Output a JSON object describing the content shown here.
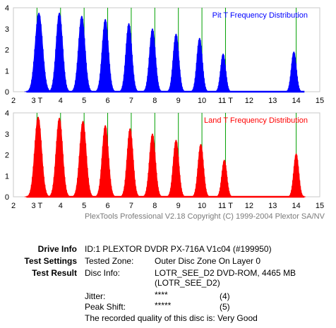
{
  "charts": [
    {
      "id": "pit",
      "title": "Pit T Frequency Distribution",
      "color": "#0000ff",
      "title_color": "#0000ff",
      "xlim": [
        2,
        15
      ],
      "ylim": [
        0,
        4
      ],
      "xticks": [
        "2",
        "3 T",
        "4",
        "5",
        "6",
        "7",
        "8",
        "9",
        "10",
        "11 T",
        "12",
        "13",
        "14",
        "15"
      ],
      "yticks": [
        "0",
        "1",
        "2",
        "3",
        "4"
      ]
    },
    {
      "id": "land",
      "title": "Land T Frequency Distribution",
      "color": "#ff0000",
      "title_color": "#ff0000",
      "xlim": [
        2,
        15
      ],
      "ylim": [
        0,
        4
      ],
      "xticks": [
        "2",
        "3 T",
        "4",
        "5",
        "6",
        "7",
        "8",
        "9",
        "10",
        "11 T",
        "12",
        "13",
        "14",
        "15"
      ],
      "yticks": [
        "0",
        "1",
        "2",
        "3",
        "4"
      ]
    }
  ],
  "chart_data": [
    {
      "type": "area",
      "title": "Pit T Frequency Distribution",
      "xlim": [
        2,
        15
      ],
      "ylim": [
        0,
        4
      ],
      "reference_lines_x": [
        3,
        4,
        5,
        6,
        7,
        8,
        9,
        10,
        11,
        14
      ],
      "peaks": [
        {
          "center": 3.08,
          "height": 3.75,
          "width": 0.48
        },
        {
          "center": 3.95,
          "height": 3.75,
          "width": 0.42
        },
        {
          "center": 4.9,
          "height": 3.6,
          "width": 0.42
        },
        {
          "center": 5.9,
          "height": 3.45,
          "width": 0.4
        },
        {
          "center": 6.9,
          "height": 3.25,
          "width": 0.38
        },
        {
          "center": 7.9,
          "height": 3.0,
          "width": 0.38
        },
        {
          "center": 8.9,
          "height": 2.75,
          "width": 0.36
        },
        {
          "center": 9.9,
          "height": 2.55,
          "width": 0.35
        },
        {
          "center": 10.9,
          "height": 1.8,
          "width": 0.32
        },
        {
          "center": 13.9,
          "height": 1.9,
          "width": 0.32
        }
      ]
    },
    {
      "type": "area",
      "title": "Land T Frequency Distribution",
      "xlim": [
        2,
        15
      ],
      "ylim": [
        0,
        4
      ],
      "reference_lines_x": [
        3,
        4,
        5,
        6,
        7,
        8,
        9,
        10,
        11,
        14
      ],
      "peaks": [
        {
          "center": 3.05,
          "height": 3.8,
          "width": 0.45
        },
        {
          "center": 3.95,
          "height": 3.75,
          "width": 0.42
        },
        {
          "center": 4.95,
          "height": 3.6,
          "width": 0.42
        },
        {
          "center": 5.9,
          "height": 3.4,
          "width": 0.4
        },
        {
          "center": 6.95,
          "height": 3.25,
          "width": 0.38
        },
        {
          "center": 7.9,
          "height": 3.0,
          "width": 0.38
        },
        {
          "center": 8.9,
          "height": 2.7,
          "width": 0.36
        },
        {
          "center": 9.95,
          "height": 2.5,
          "width": 0.35
        },
        {
          "center": 10.95,
          "height": 1.75,
          "width": 0.32
        },
        {
          "center": 14.0,
          "height": 2.05,
          "width": 0.32
        }
      ]
    }
  ],
  "copyright": "PlexTools Professional V2.18 Copyright (C) 1999-2004 Plextor SA/NV",
  "info": {
    "drive_info_label": "Drive Info",
    "drive_info_value": "ID:1 PLEXTOR DVDR PX-716A V1c04 (#199950)",
    "test_settings_label": "Test Settings",
    "tested_zone_label": "Tested Zone:",
    "tested_zone_value": "Outer Disc Zone On Layer 0",
    "test_result_label": "Test Result",
    "disc_info_label": "Disc Info:",
    "disc_info_line1": "LOTR_SEE_D2 DVD-ROM, 4465 MB",
    "disc_info_line2": "(LOTR_SEE_D2)",
    "jitter_label": "Jitter:",
    "jitter_stars": "****",
    "jitter_score": "(4)",
    "peak_shift_label": "Peak Shift:",
    "peak_shift_stars": "*****",
    "peak_shift_score": "(5)",
    "quality_text": "The recorded quality of this disc is: Very Good"
  }
}
